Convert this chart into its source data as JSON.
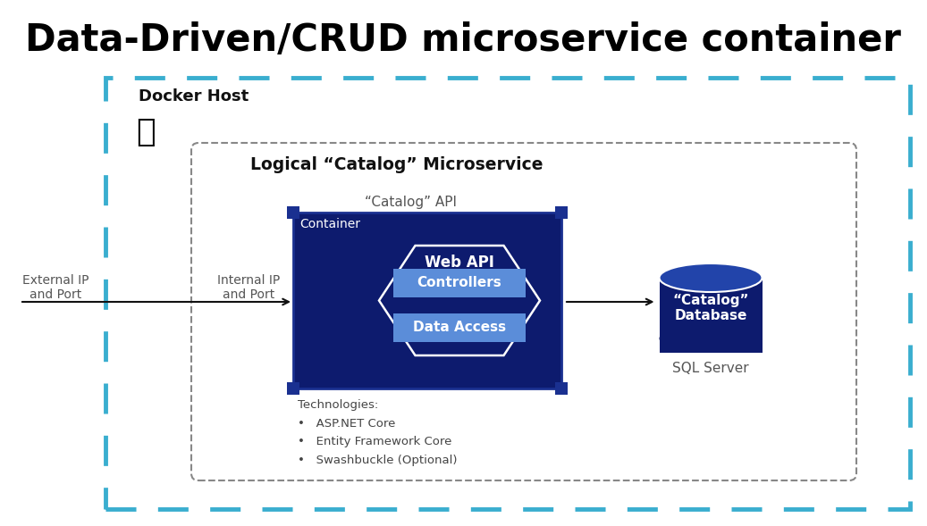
{
  "title": "Data-Driven/CRUD microservice container",
  "title_fontsize": 30,
  "bg_color": "#ffffff",
  "docker_host_label": "Docker Host",
  "logical_ms_label": "Logical “Catalog” Microservice",
  "catalog_api_label": "“Catalog” API",
  "container_label": "Container",
  "web_api_label": "Web API",
  "controllers_label": "Controllers",
  "data_access_label": "Data Access",
  "external_label": "External IP\nand Port",
  "internal_label": "Internal IP\nand Port",
  "db_label": "“Catalog”\nDatabase",
  "sql_label": "SQL Server",
  "tech_label": "Technologies:\n•   ASP.NET Core\n•   Entity Framework Core\n•   Swashbuckle (Optional)",
  "docker_border_color": "#3aaecf",
  "logical_border_color": "#888888",
  "container_dark": "#0d1b6e",
  "container_border": "#1a3090",
  "corner_color": "#1a3090",
  "hex_border": "#ffffff",
  "ctrl_color": "#5b8dd9",
  "da_color": "#5b8dd9",
  "db_dark": "#0d1b6e",
  "db_top": "#1e3a9e",
  "arrow_color": "#111111",
  "text_gray": "#555555",
  "tech_color": "#444444"
}
